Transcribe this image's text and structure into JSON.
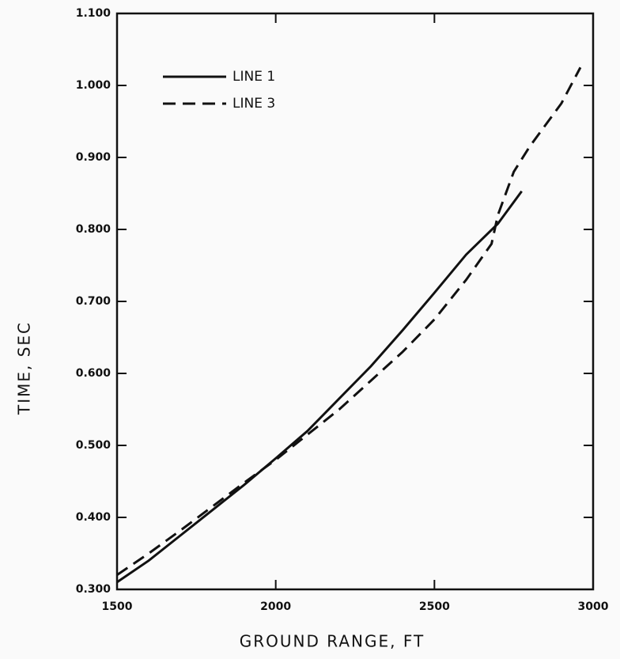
{
  "chart_data": {
    "type": "line",
    "x_label": "GROUND RANGE, FT",
    "y_label": "TIME, SEC",
    "xlim": [
      1500,
      3000
    ],
    "xticks": [
      1500,
      2000,
      2500,
      3000
    ],
    "ylim": [
      0.3,
      1.1
    ],
    "yticks": [
      {
        "value": 0.3,
        "label": "0.300"
      },
      {
        "value": 0.4,
        "label": "0.400"
      },
      {
        "value": 0.5,
        "label": "0.500"
      },
      {
        "value": 0.6,
        "label": "0.600"
      },
      {
        "value": 0.7,
        "label": "0.700"
      },
      {
        "value": 0.8,
        "label": "0.800"
      },
      {
        "value": 0.9,
        "label": "0.900"
      },
      {
        "value": 1.0,
        "label": "1.000"
      },
      {
        "value": 1.1,
        "label": "1.100"
      }
    ],
    "legend": "upper-left",
    "series": [
      {
        "name": "LINE 1",
        "color": "#111111",
        "dash": "solid",
        "x": [
          1500,
          1600,
          1700,
          1800,
          1900,
          2000,
          2100,
          2200,
          2300,
          2400,
          2500,
          2600,
          2700,
          2775
        ],
        "values": [
          0.31,
          0.34,
          0.375,
          0.41,
          0.445,
          0.482,
          0.52,
          0.565,
          0.61,
          0.66,
          0.712,
          0.765,
          0.808,
          0.853
        ]
      },
      {
        "name": "LINE 3",
        "color": "#111111",
        "dash": "dashed",
        "x": [
          1500,
          1600,
          1700,
          1800,
          1900,
          2000,
          2100,
          2200,
          2300,
          2400,
          2500,
          2600,
          2680,
          2700,
          2750,
          2800,
          2900,
          2960
        ],
        "values": [
          0.32,
          0.35,
          0.382,
          0.415,
          0.448,
          0.48,
          0.515,
          0.55,
          0.59,
          0.63,
          0.675,
          0.73,
          0.78,
          0.82,
          0.88,
          0.915,
          0.975,
          1.025
        ]
      }
    ]
  }
}
